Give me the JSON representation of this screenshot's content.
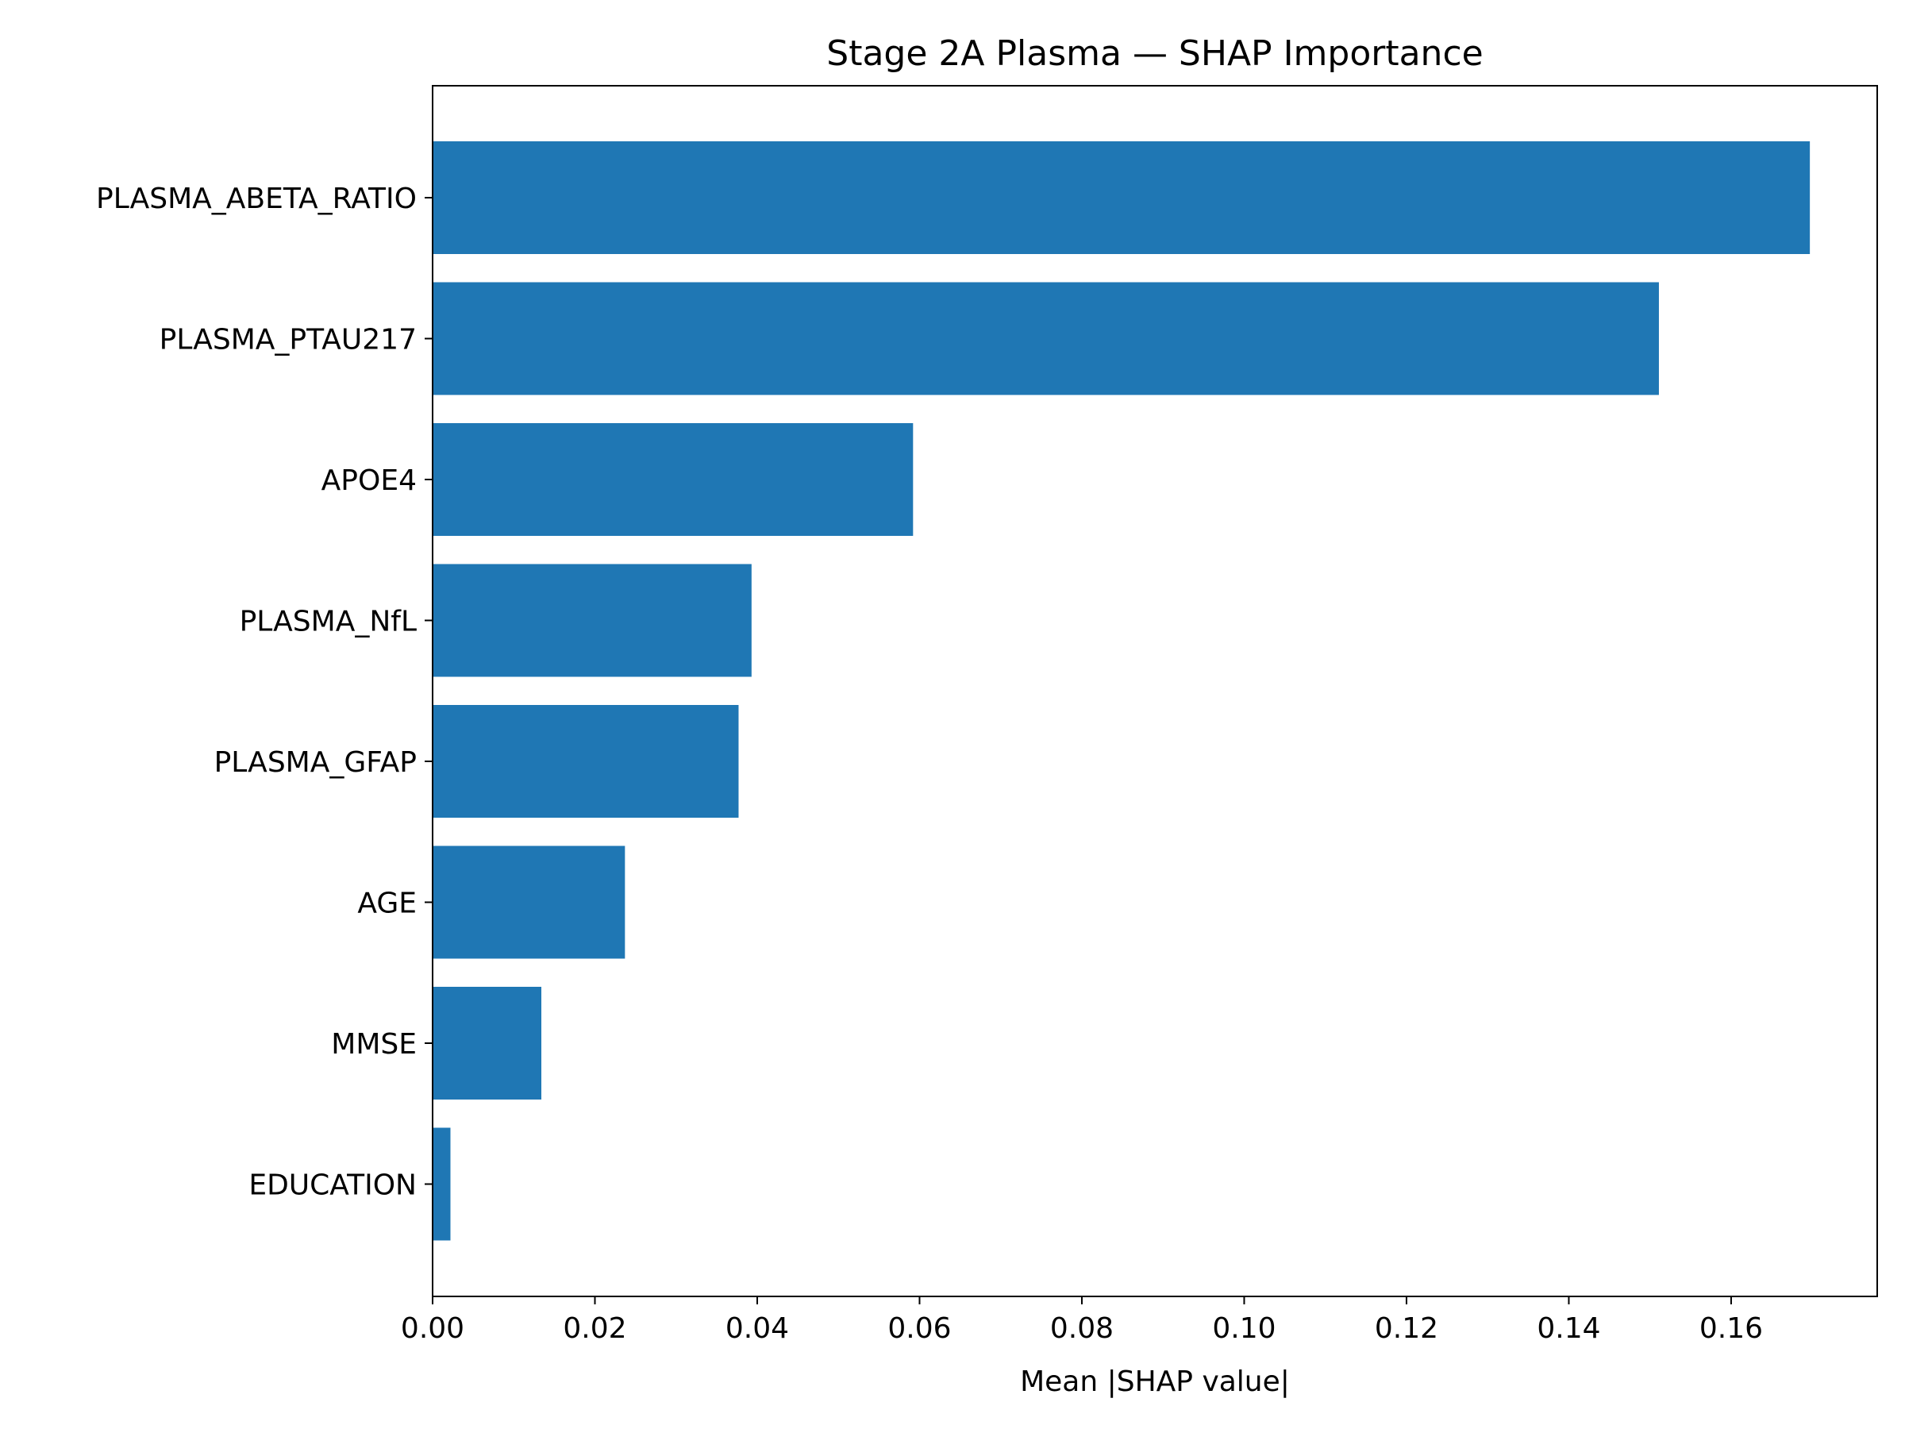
{
  "chart_data": {
    "type": "bar",
    "orientation": "horizontal",
    "title": "Stage 2A Plasma — SHAP Importance",
    "xlabel": "Mean |SHAP value|",
    "ylabel": "",
    "categories": [
      "PLASMA_ABETA_RATIO",
      "PLASMA_PTAU217",
      "APOE4",
      "PLASMA_NfL",
      "PLASMA_GFAP",
      "AGE",
      "MMSE",
      "EDUCATION"
    ],
    "values": [
      0.1697,
      0.1511,
      0.0592,
      0.0393,
      0.0377,
      0.0237,
      0.0134,
      0.0022
    ],
    "xlim": [
      0,
      0.178
    ],
    "xticks": [
      0.0,
      0.02,
      0.04,
      0.06,
      0.08,
      0.1,
      0.12,
      0.14,
      0.16
    ],
    "xtick_labels": [
      "0.00",
      "0.02",
      "0.04",
      "0.06",
      "0.08",
      "0.10",
      "0.12",
      "0.14",
      "0.16"
    ],
    "bar_color": "#1f77b4",
    "grid": false,
    "legend": "none"
  }
}
